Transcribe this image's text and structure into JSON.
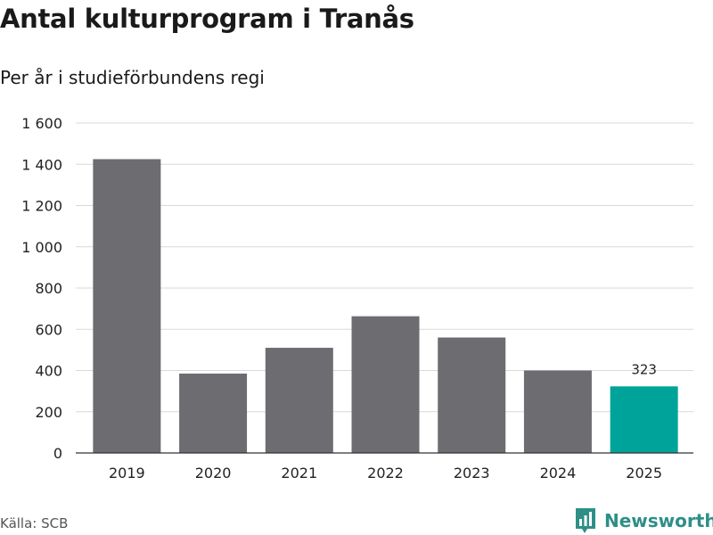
{
  "chart_data": {
    "type": "bar",
    "title": "Antal kulturprogram i Tranås",
    "subtitle": "Per år i studieförbundens regi",
    "categories": [
      "2019",
      "2020",
      "2021",
      "2022",
      "2023",
      "2024",
      "2025"
    ],
    "values": [
      1425,
      385,
      510,
      663,
      560,
      400,
      323
    ],
    "highlight_index": 6,
    "highlight_label": "323",
    "y_ticks": [
      0,
      200,
      400,
      600,
      800,
      1000,
      1200,
      1400,
      1600
    ],
    "y_tick_labels": [
      "0",
      "200",
      "400",
      "600",
      "800",
      "1 000",
      "1 200",
      "1 400",
      "1 600"
    ],
    "ylim": [
      0,
      1600
    ],
    "xlabel": "",
    "ylabel": "",
    "grid": true,
    "colors": {
      "bar": "#6d6c71",
      "highlight": "#00a39a",
      "grid": "#d9d9d9",
      "axis": "#333333"
    }
  },
  "footer": {
    "source": "Källa: SCB",
    "brand": "Newsworthy",
    "brand_icon": "bar-chart-logo-icon"
  }
}
